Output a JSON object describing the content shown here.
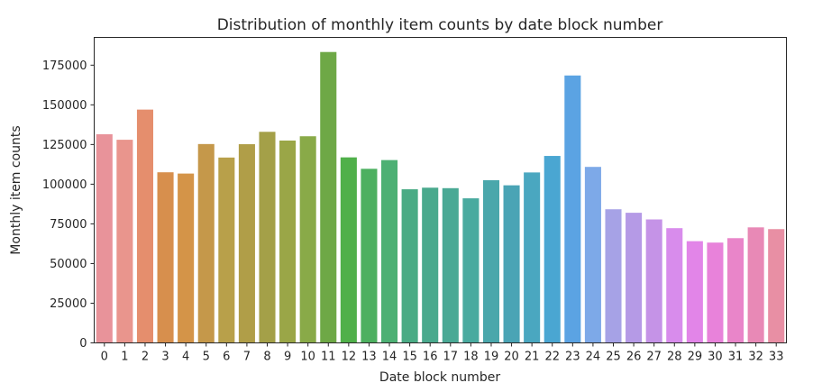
{
  "chart_data": {
    "type": "bar",
    "title": "Distribution of monthly item counts by date block number",
    "xlabel": "Date block number",
    "ylabel": "Monthly item counts",
    "categories": [
      "0",
      "1",
      "2",
      "3",
      "4",
      "5",
      "6",
      "7",
      "8",
      "9",
      "10",
      "11",
      "12",
      "13",
      "14",
      "15",
      "16",
      "17",
      "18",
      "19",
      "20",
      "21",
      "22",
      "23",
      "24",
      "25",
      "26",
      "27",
      "28",
      "29",
      "30",
      "31",
      "32",
      "33"
    ],
    "values": [
      131500,
      128000,
      147000,
      107500,
      106700,
      125300,
      116800,
      125200,
      133000,
      127500,
      130200,
      183300,
      116900,
      109700,
      115200,
      96800,
      97800,
      97500,
      91100,
      102500,
      99300,
      107400,
      117800,
      168500,
      110900,
      84200,
      82000,
      77800,
      72300,
      64100,
      63200,
      66000,
      72800,
      71700
    ],
    "colors": [
      "#e8939a",
      "#e9958d",
      "#e58e6d",
      "#d78f4d",
      "#d49448",
      "#c5984a",
      "#b8a04a",
      "#b09e48",
      "#a4a048",
      "#9aa647",
      "#89aa48",
      "#6ea846",
      "#50b04a",
      "#4db060",
      "#4db074",
      "#4aab85",
      "#4aa98d",
      "#4aa995",
      "#49aa9f",
      "#4aa7ab",
      "#4aa4b5",
      "#4aa7c0",
      "#4aa6d2",
      "#5ba3e3",
      "#7da9e8",
      "#a6a2e6",
      "#b59ae6",
      "#c593e7",
      "#d88cec",
      "#e285e8",
      "#e882da",
      "#e985c9",
      "#e889b6",
      "#e88fa4"
    ],
    "yticks": [
      "0",
      "25000",
      "50000",
      "75000",
      "100000",
      "125000",
      "150000",
      "175000"
    ],
    "ylim": [
      0,
      192500
    ],
    "grid": false,
    "legend": "none"
  }
}
